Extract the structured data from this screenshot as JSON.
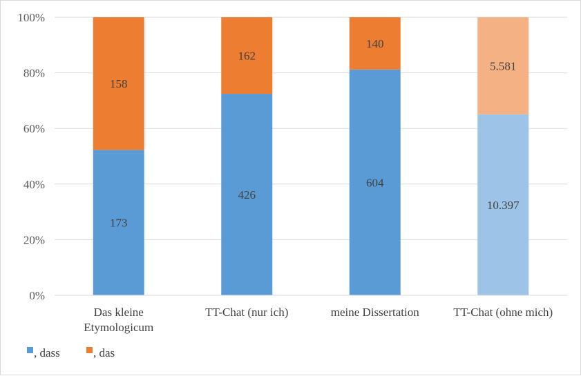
{
  "chart_data": {
    "type": "bar",
    "stacked": true,
    "normalized": true,
    "categories": [
      [
        "Das kleine",
        "Etymologicum"
      ],
      [
        "TT-Chat (nur ich)"
      ],
      [
        "meine Dissertation"
      ],
      [
        "TT-Chat (ohne mich)"
      ]
    ],
    "series": [
      {
        "name": ", dass",
        "values": [
          173,
          426,
          604,
          10397
        ],
        "labels": [
          "173",
          "426",
          "604",
          "10.397"
        ],
        "color": "#5b9bd5",
        "colors": [
          "#5b9bd5",
          "#5b9bd5",
          "#5b9bd5",
          "#9dc3e6"
        ]
      },
      {
        "name": ", das",
        "values": [
          158,
          162,
          140,
          5581
        ],
        "labels": [
          "158",
          "162",
          "140",
          "5.581"
        ],
        "color": "#ed7d31",
        "colors": [
          "#ed7d31",
          "#ed7d31",
          "#ed7d31",
          "#f4b183"
        ]
      }
    ],
    "yticks": [
      "0%",
      "20%",
      "40%",
      "60%",
      "80%",
      "100%"
    ],
    "ylim": [
      0,
      100
    ],
    "grid": true,
    "legend": "bottom-left"
  }
}
